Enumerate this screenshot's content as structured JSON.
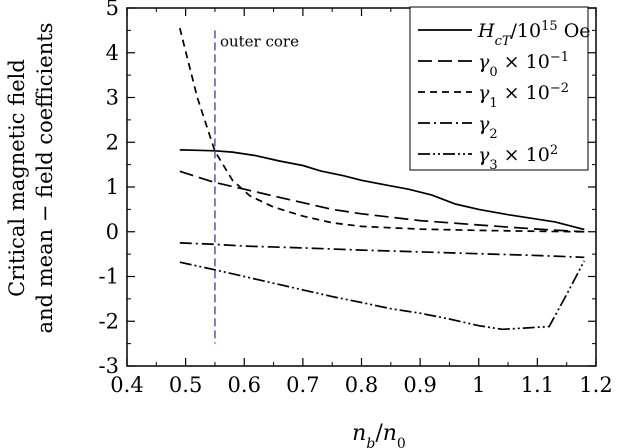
{
  "chart_data": {
    "type": "line",
    "title": "",
    "xlabel": {
      "base": "n",
      "sub": "b",
      "sep": "/",
      "base2": "n",
      "sub2": "0"
    },
    "ylabel": [
      "Critical magnetic field",
      "and mean − field coefficients"
    ],
    "xlim": [
      0.4,
      1.2
    ],
    "ylim": [
      -3,
      5
    ],
    "xticks": [
      "0.4",
      "0.5",
      "0.6",
      "0.7",
      "0.8",
      "0.9",
      "1",
      "1.1",
      "1.2"
    ],
    "yticks": [
      "-3",
      "-2",
      "-1",
      "0",
      "1",
      "2",
      "3",
      "4",
      "5"
    ],
    "grid": false,
    "legend_position": "top-right",
    "annotation": {
      "text": "outer core",
      "x": 0.55,
      "y_range": [
        -2.5,
        4.5
      ],
      "color": "#3a3aa8"
    },
    "series": [
      {
        "name": "H_cT/10^15 Oe",
        "legend": {
          "sym": "H",
          "sub": "cT",
          "mid": "/10",
          "sup": "15",
          "tail": " Oe"
        },
        "dash": "",
        "x": [
          0.49,
          0.52,
          0.55,
          0.58,
          0.62,
          0.66,
          0.7,
          0.73,
          0.77,
          0.8,
          0.84,
          0.88,
          0.92,
          0.96,
          1.0,
          1.05,
          1.1,
          1.13,
          1.16,
          1.18
        ],
        "y": [
          1.83,
          1.82,
          1.81,
          1.78,
          1.7,
          1.58,
          1.48,
          1.36,
          1.25,
          1.15,
          1.05,
          0.95,
          0.82,
          0.62,
          0.5,
          0.38,
          0.28,
          0.22,
          0.12,
          0.05
        ]
      },
      {
        "name": "γ0 × 10^-1",
        "legend": {
          "sym": "γ",
          "sub": "0",
          "mid": " × 10",
          "sup": "−1",
          "tail": ""
        },
        "dash": "14 6",
        "x": [
          0.49,
          0.55,
          0.6,
          0.65,
          0.7,
          0.75,
          0.8,
          0.9,
          1.0,
          1.1,
          1.18
        ],
        "y": [
          1.35,
          1.1,
          0.95,
          0.8,
          0.65,
          0.5,
          0.4,
          0.25,
          0.15,
          0.06,
          0.0
        ]
      },
      {
        "name": "γ1 × 10^-2",
        "legend": {
          "sym": "γ",
          "sub": "1",
          "mid": " × 10",
          "sup": "−2",
          "tail": ""
        },
        "dash": "7 5",
        "x": [
          0.49,
          0.52,
          0.55,
          0.58,
          0.61,
          0.65,
          0.7,
          0.75,
          0.8,
          0.9,
          1.0,
          1.1,
          1.18
        ],
        "y": [
          4.55,
          3.0,
          1.8,
          1.15,
          0.8,
          0.55,
          0.35,
          0.2,
          0.12,
          0.06,
          0.03,
          0.01,
          0.0
        ]
      },
      {
        "name": "γ2",
        "legend": {
          "sym": "γ",
          "sub": "2",
          "mid": "",
          "sup": "",
          "tail": ""
        },
        "dash": "12 4 2 4",
        "x": [
          0.49,
          0.55,
          0.6,
          0.7,
          0.8,
          0.9,
          1.0,
          1.1,
          1.18
        ],
        "y": [
          -0.25,
          -0.28,
          -0.32,
          -0.36,
          -0.41,
          -0.45,
          -0.49,
          -0.53,
          -0.57
        ]
      },
      {
        "name": "γ3 × 10^2",
        "legend": {
          "sym": "γ",
          "sub": "3",
          "mid": " × 10",
          "sup": "2",
          "tail": ""
        },
        "dash": "12 3 2 3 2 3",
        "x": [
          0.49,
          0.55,
          0.6,
          0.65,
          0.7,
          0.75,
          0.8,
          0.85,
          0.9,
          0.95,
          1.0,
          1.04,
          1.08,
          1.12,
          1.15,
          1.18
        ],
        "y": [
          -0.68,
          -0.85,
          -1.0,
          -1.15,
          -1.3,
          -1.45,
          -1.58,
          -1.72,
          -1.82,
          -1.95,
          -2.1,
          -2.18,
          -2.15,
          -2.12,
          -1.4,
          -0.65
        ]
      }
    ]
  }
}
